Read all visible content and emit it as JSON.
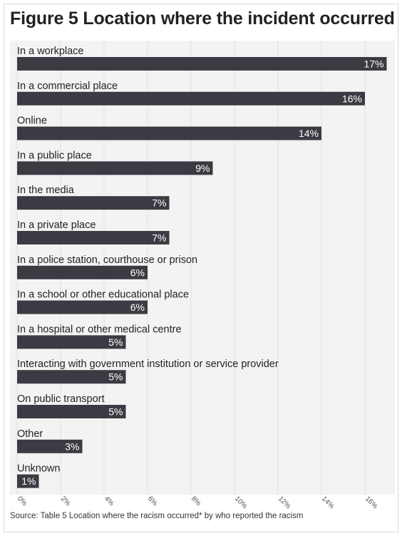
{
  "title": "Figure 5 Location where the incident occurred",
  "source": "Source: Table 5 Location where the racism occurred* by who reported the racism",
  "chart_data": {
    "type": "bar",
    "orientation": "horizontal",
    "categories": [
      "In a workplace",
      "In a commercial place",
      "Online",
      "In a public place",
      "In the media",
      "In a private place",
      "In a police station, courthouse or prison",
      "In a school or other educational place",
      "In a hospital or other medical centre",
      "Interacting with government institution or service provider",
      "On public transport",
      "Other",
      "Unknown"
    ],
    "values": [
      17,
      16,
      14,
      9,
      7,
      7,
      6,
      6,
      5,
      5,
      5,
      3,
      1
    ],
    "data_labels": [
      "17%",
      "16%",
      "14%",
      "9%",
      "7%",
      "7%",
      "6%",
      "6%",
      "5%",
      "5%",
      "5%",
      "3%",
      "1%"
    ],
    "xlim": [
      0,
      18
    ],
    "xticks": [
      0,
      2,
      4,
      6,
      8,
      10,
      12,
      14,
      16
    ],
    "xtick_labels": [
      "0%",
      "2%",
      "4%",
      "6%",
      "8%",
      "10%",
      "12%",
      "14%",
      "16%"
    ],
    "grid": true,
    "colors": {
      "bar": "#3c3b43",
      "label_text": "#ffffff",
      "plot_background": "#f3f3f3",
      "grid": "#e2e2e2"
    }
  }
}
